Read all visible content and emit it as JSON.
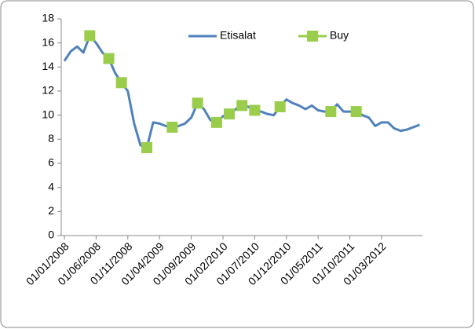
{
  "chart_data": {
    "type": "line",
    "categories": [
      "01/01/2008",
      null,
      null,
      null,
      null,
      "01/06/2008",
      null,
      null,
      null,
      null,
      "01/11/2008",
      null,
      null,
      null,
      null,
      "01/04/2009",
      null,
      null,
      null,
      null,
      "01/09/2009",
      null,
      null,
      null,
      null,
      "01/02/2010",
      null,
      null,
      null,
      null,
      "01/07/2010",
      null,
      null,
      null,
      null,
      "01/12/2010",
      null,
      null,
      null,
      null,
      "01/05/2011",
      null,
      null,
      null,
      null,
      "01/10/2011",
      null,
      null,
      null,
      null,
      "01/03/2012",
      null,
      null,
      null,
      null,
      null,
      null
    ],
    "series": [
      {
        "name": "Etisalat",
        "color": "#4f81bd",
        "values": [
          14.5,
          15.3,
          15.7,
          15.2,
          16.6,
          16.0,
          15.2,
          14.7,
          13.5,
          12.7,
          12.0,
          9.3,
          7.5,
          7.3,
          9.4,
          9.3,
          9.1,
          9.0,
          9.1,
          9.3,
          9.8,
          11.0,
          10.5,
          9.6,
          9.4,
          9.9,
          10.1,
          10.5,
          10.8,
          10.7,
          10.4,
          10.3,
          10.1,
          10.0,
          10.7,
          11.3,
          11.0,
          10.8,
          10.5,
          10.8,
          10.4,
          10.3,
          10.3,
          10.9,
          10.3,
          10.3,
          10.3,
          10.0,
          9.8,
          9.1,
          9.4,
          9.4,
          8.9,
          8.7,
          8.8,
          9.0,
          9.2
        ]
      },
      {
        "name": "Buy",
        "color": "#9bcd4c",
        "values": [
          null,
          null,
          null,
          null,
          16.6,
          null,
          null,
          14.7,
          null,
          12.7,
          null,
          null,
          null,
          7.3,
          null,
          null,
          null,
          9.0,
          null,
          null,
          null,
          11.0,
          null,
          null,
          9.4,
          null,
          10.1,
          null,
          10.8,
          null,
          10.4,
          null,
          null,
          null,
          10.7,
          null,
          null,
          null,
          null,
          null,
          null,
          null,
          10.3,
          null,
          null,
          null,
          10.3,
          null,
          null,
          null,
          null,
          null,
          null,
          null,
          null,
          null,
          null
        ]
      }
    ],
    "ylim": [
      0,
      18
    ],
    "yticks": [
      0,
      2,
      4,
      6,
      8,
      10,
      12,
      14,
      16,
      18
    ],
    "legend": "top-right"
  }
}
